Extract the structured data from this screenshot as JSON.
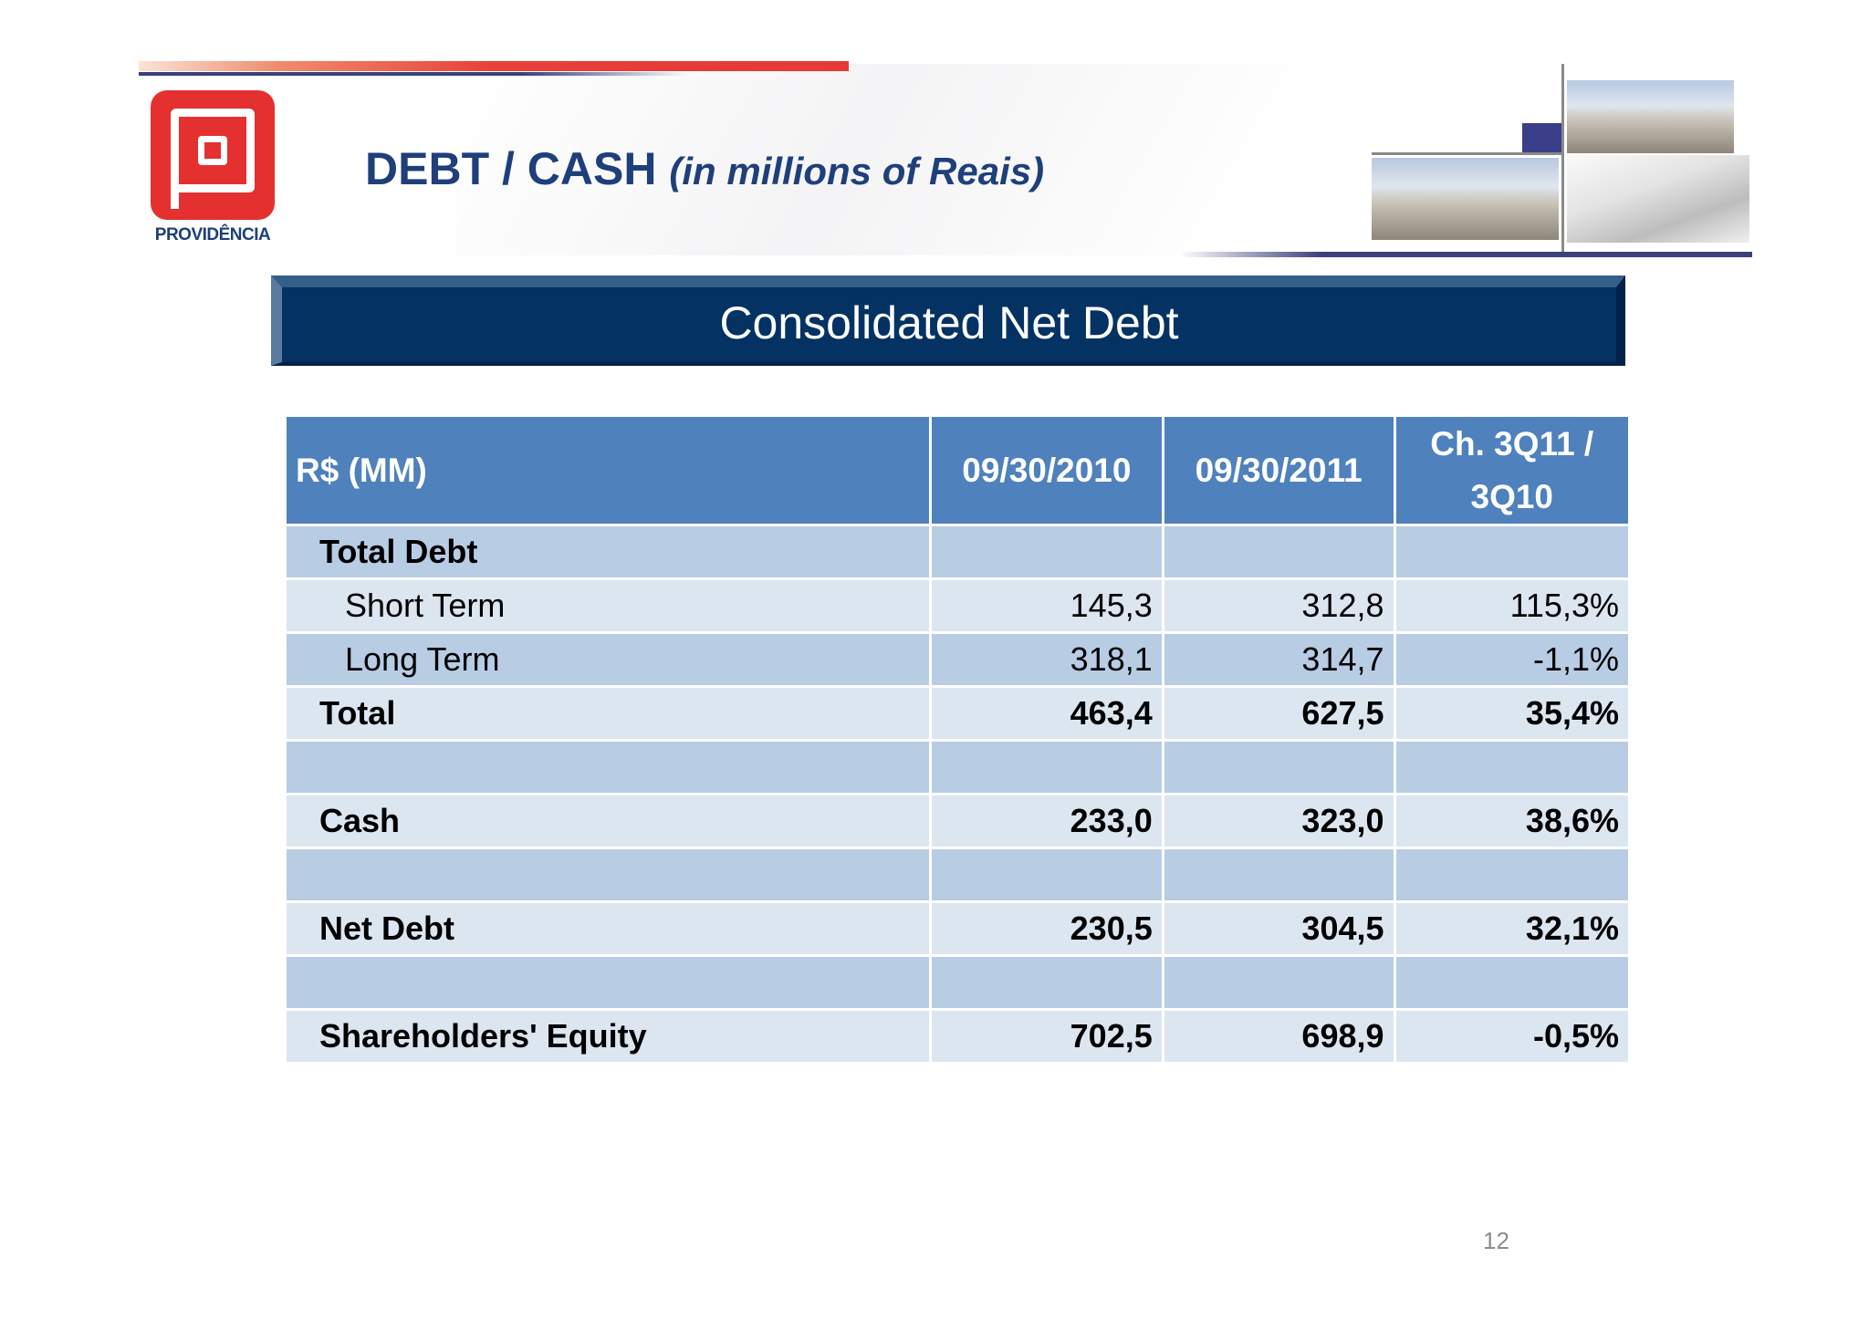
{
  "header": {
    "logo_text": "PROVIDÊNCIA",
    "title_main": "DEBT / CASH",
    "title_sub": "(in millions of Reais)"
  },
  "banner": {
    "title": "Consolidated Net Debt"
  },
  "table": {
    "columns": [
      "R$ (MM)",
      "09/30/2010",
      "09/30/2011",
      "Ch. 3Q11 / 3Q10"
    ],
    "rows": [
      {
        "label": "Total Debt",
        "values": [
          "",
          "",
          ""
        ],
        "bold": true,
        "indent": 0
      },
      {
        "label": "Short Term",
        "values": [
          "145,3",
          "312,8",
          "115,3%"
        ],
        "bold": false,
        "indent": 1
      },
      {
        "label": "Long Term",
        "values": [
          "318,1",
          "314,7",
          "-1,1%"
        ],
        "bold": false,
        "indent": 1
      },
      {
        "label": "Total",
        "values": [
          "463,4",
          "627,5",
          "35,4%"
        ],
        "bold": true,
        "indent": 0
      },
      {
        "label": "",
        "values": [
          "",
          "",
          ""
        ],
        "bold": false,
        "indent": 0
      },
      {
        "label": "Cash",
        "values": [
          "233,0",
          "323,0",
          "38,6%"
        ],
        "bold": true,
        "indent": 0
      },
      {
        "label": "",
        "values": [
          "",
          "",
          ""
        ],
        "bold": false,
        "indent": 0
      },
      {
        "label": "Net Debt",
        "values": [
          "230,5",
          "304,5",
          "32,1%"
        ],
        "bold": true,
        "indent": 0
      },
      {
        "label": "",
        "values": [
          "",
          "",
          ""
        ],
        "bold": false,
        "indent": 0
      },
      {
        "label": "Shareholders' Equity",
        "values": [
          "702,5",
          "698,9",
          "-0,5%"
        ],
        "bold": true,
        "indent": 0
      }
    ]
  },
  "footer": {
    "page_number": "12"
  },
  "colors": {
    "header_blue": "#4f81bd",
    "row_dark": "#b8cce4",
    "row_light": "#dce6f1",
    "banner": "#033263",
    "title": "#1f3f7a",
    "brand_red": "#e53030"
  }
}
